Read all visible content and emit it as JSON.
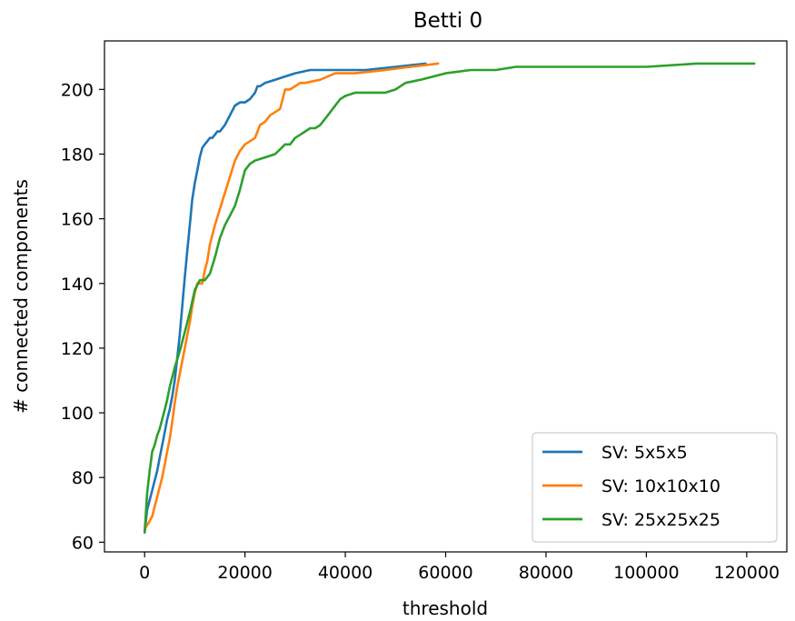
{
  "chart_data": {
    "type": "line",
    "title": "Betti 0",
    "xlabel": "threshold",
    "ylabel": "# connected components",
    "xlim": [
      -8000,
      128000
    ],
    "ylim": [
      57,
      215
    ],
    "xticks": [
      0,
      20000,
      40000,
      60000,
      80000,
      100000,
      120000
    ],
    "yticks": [
      60,
      80,
      100,
      120,
      140,
      160,
      180,
      200
    ],
    "grid": false,
    "legend_position": "lower-right",
    "series": [
      {
        "name": "SV: 5x5x5",
        "color": "#1f77b4",
        "x": [
          0,
          500,
          1000,
          1500,
          2000,
          2500,
          3000,
          3500,
          4000,
          4500,
          5000,
          5500,
          6000,
          6500,
          7000,
          7500,
          8000,
          8500,
          9000,
          9500,
          10000,
          10500,
          11000,
          11500,
          12000,
          12500,
          13000,
          13500,
          14000,
          14500,
          15000,
          16000,
          17000,
          18000,
          19000,
          20000,
          21000,
          22000,
          22500,
          23000,
          24000,
          26000,
          28000,
          30000,
          33000,
          38000,
          44000,
          50000,
          56000
        ],
        "y": [
          63,
          70,
          73,
          76,
          79,
          82,
          86,
          90,
          94,
          98,
          101,
          105,
          110,
          117,
          124,
          133,
          142,
          150,
          158,
          166,
          171,
          175,
          179,
          182,
          183,
          184,
          185,
          185,
          186,
          187,
          187,
          189,
          192,
          195,
          196,
          196,
          197,
          199,
          201,
          201,
          202,
          203,
          204,
          205,
          206,
          206,
          206,
          207,
          208
        ]
      },
      {
        "name": "SV: 10x10x10",
        "color": "#ff7f0e",
        "x": [
          0,
          800,
          1500,
          2000,
          2500,
          3000,
          3500,
          4000,
          4500,
          5000,
          5500,
          6000,
          6500,
          7000,
          7500,
          8000,
          8500,
          9000,
          9500,
          10000,
          10500,
          11000,
          11500,
          12000,
          12500,
          13000,
          14000,
          15000,
          16000,
          17000,
          18000,
          19000,
          20000,
          21000,
          22000,
          23000,
          24000,
          25000,
          26000,
          27000,
          28000,
          29000,
          30000,
          31000,
          32000,
          35000,
          38000,
          42000,
          48000,
          53000,
          58500
        ],
        "y": [
          64,
          66,
          68,
          71,
          74,
          77,
          80,
          84,
          88,
          92,
          97,
          103,
          108,
          112,
          116,
          120,
          124,
          128,
          133,
          137,
          140,
          140,
          140,
          144,
          147,
          152,
          158,
          163,
          168,
          173,
          178,
          181,
          183,
          184,
          185,
          189,
          190,
          192,
          193,
          194,
          200,
          200,
          201,
          202,
          202,
          203,
          205,
          205,
          206,
          207,
          208
        ]
      },
      {
        "name": "SV: 25x25x25",
        "color": "#2ca02c",
        "x": [
          0,
          500,
          1000,
          1500,
          2000,
          2500,
          3000,
          3500,
          4000,
          4500,
          5000,
          6000,
          7000,
          8000,
          9000,
          10000,
          11000,
          12000,
          13000,
          14000,
          15000,
          16000,
          17000,
          18000,
          19000,
          20000,
          21000,
          22000,
          24000,
          26000,
          28000,
          29000,
          30000,
          31000,
          32000,
          33000,
          34000,
          35000,
          36000,
          37000,
          38000,
          39000,
          40000,
          42000,
          45000,
          48000,
          50000,
          52000,
          55000,
          60000,
          65000,
          70000,
          74000,
          80000,
          90000,
          100000,
          110000,
          121500
        ],
        "y": [
          63,
          75,
          82,
          88,
          90,
          93,
          95,
          98,
          101,
          104,
          108,
          114,
          119,
          125,
          131,
          138,
          141,
          141,
          143,
          148,
          154,
          158,
          161,
          164,
          169,
          175,
          177,
          178,
          179,
          180,
          183,
          183,
          185,
          186,
          187,
          188,
          188,
          189,
          191,
          193,
          195,
          197,
          198,
          199,
          199,
          199,
          200,
          202,
          203,
          205,
          206,
          206,
          207,
          207,
          207,
          207,
          208,
          208
        ]
      }
    ]
  }
}
